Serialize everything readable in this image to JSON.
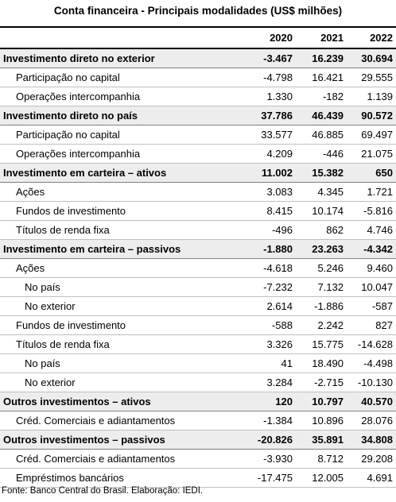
{
  "header": {
    "title": "Conta financeira - Principais modalidades (US$ milhões)"
  },
  "table": {
    "columns": [
      "2020",
      "2021",
      "2022"
    ],
    "sections": [
      {
        "label": "Investimento direto no exterior",
        "values": [
          "-3.467",
          "16.239",
          "30.694"
        ],
        "items": [
          {
            "label": "Participação no capital",
            "values": [
              "-4.798",
              "16.421",
              "29.555"
            ]
          },
          {
            "label": "Operações intercompanhia",
            "values": [
              "1.330",
              "-182",
              "1.139"
            ]
          }
        ]
      },
      {
        "label": "Investimento direto no país",
        "values": [
          "37.786",
          "46.439",
          "90.572"
        ],
        "items": [
          {
            "label": "Participação no capital",
            "values": [
              "33.577",
              "46.885",
              "69.497"
            ]
          },
          {
            "label": "Operações intercompanhia",
            "values": [
              "4.209",
              "-446",
              "21.075"
            ]
          }
        ]
      },
      {
        "label": "Investimento em carteira – ativos",
        "values": [
          "11.002",
          "15.382",
          "650"
        ],
        "items": [
          {
            "label": "Ações",
            "values": [
              "3.083",
              "4.345",
              "1.721"
            ]
          },
          {
            "label": "Fundos de investimento",
            "values": [
              "8.415",
              "10.174",
              "-5.816"
            ]
          },
          {
            "label": "Títulos de renda fixa",
            "values": [
              "-496",
              "862",
              "4.746"
            ]
          }
        ]
      },
      {
        "label": "Investimento em carteira – passivos",
        "values": [
          "-1.880",
          "23.263",
          "-4.342"
        ],
        "items": [
          {
            "label": "Ações",
            "values": [
              "-4.618",
              "5.246",
              "9.460"
            ],
            "items": [
              {
                "label": "No país",
                "values": [
                  "-7.232",
                  "7.132",
                  "10.047"
                ]
              },
              {
                "label": "No exterior",
                "values": [
                  "2.614",
                  "-1.886",
                  "-587"
                ]
              }
            ]
          },
          {
            "label": "Fundos de investimento",
            "values": [
              "-588",
              "2.242",
              "827"
            ]
          },
          {
            "label": "Títulos de renda fixa",
            "values": [
              "3.326",
              "15.775",
              "-14.628"
            ],
            "items": [
              {
                "label": "No país",
                "values": [
                  "41",
                  "18.490",
                  "-4.498"
                ]
              },
              {
                "label": "No exterior",
                "values": [
                  "3.284",
                  "-2.715",
                  "-10.130"
                ]
              }
            ]
          }
        ]
      },
      {
        "label": "Outros investimentos – ativos",
        "values": [
          "120",
          "10.797",
          "40.570"
        ],
        "items": [
          {
            "label": "Créd. Comerciais e adiantamentos",
            "values": [
              "-1.384",
              "10.896",
              "28.076"
            ]
          }
        ]
      },
      {
        "label": "Outros investimentos – passivos",
        "values": [
          "-20.826",
          "35.891",
          "34.808"
        ],
        "items": [
          {
            "label": "Créd. Comerciais e adiantamentos",
            "values": [
              "-3.930",
              "8.712",
              "29.208"
            ]
          },
          {
            "label": "Empréstimos bancários",
            "values": [
              "-17.475",
              "12.005",
              "4.691"
            ]
          }
        ]
      }
    ]
  },
  "footer": {
    "source": "Fonte: Banco Central do Brasil. Elaboração: IEDI."
  }
}
